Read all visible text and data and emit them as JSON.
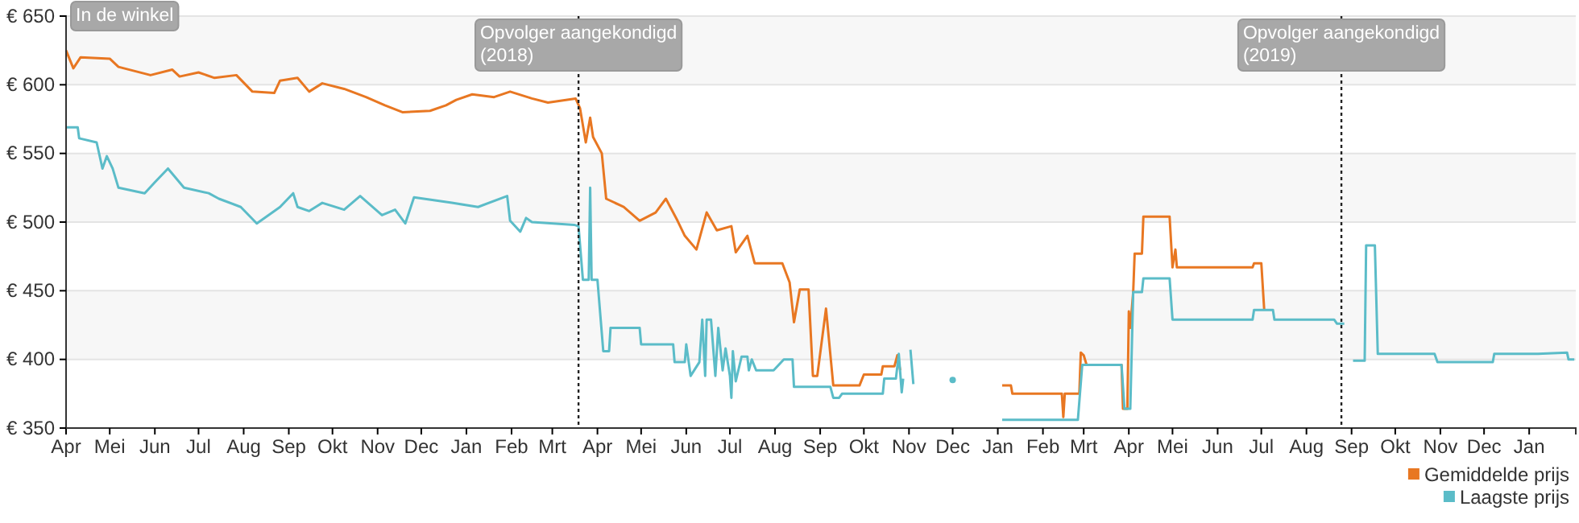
{
  "chart_data": {
    "type": "line",
    "xlim": [
      "2017-04-01",
      "2020-02-02"
    ],
    "xticks": [
      {
        "value": "2017-04-01",
        "label": "Apr"
      },
      {
        "value": "2017-05-01",
        "label": "Mei"
      },
      {
        "value": "2017-06-01",
        "label": "Jun"
      },
      {
        "value": "2017-07-01",
        "label": "Jul"
      },
      {
        "value": "2017-08-01",
        "label": "Aug"
      },
      {
        "value": "2017-09-01",
        "label": "Sep"
      },
      {
        "value": "2017-10-01",
        "label": "Okt"
      },
      {
        "value": "2017-11-01",
        "label": "Nov"
      },
      {
        "value": "2017-12-01",
        "label": "Dec"
      },
      {
        "value": "2018-01-01",
        "label": "Jan"
      },
      {
        "value": "2018-02-01",
        "label": "Feb"
      },
      {
        "value": "2018-03-01",
        "label": "Mrt"
      },
      {
        "value": "2018-04-01",
        "label": "Apr"
      },
      {
        "value": "2018-05-01",
        "label": "Mei"
      },
      {
        "value": "2018-06-01",
        "label": "Jun"
      },
      {
        "value": "2018-07-01",
        "label": "Jul"
      },
      {
        "value": "2018-08-01",
        "label": "Aug"
      },
      {
        "value": "2018-09-01",
        "label": "Sep"
      },
      {
        "value": "2018-10-01",
        "label": "Okt"
      },
      {
        "value": "2018-11-01",
        "label": "Nov"
      },
      {
        "value": "2018-12-01",
        "label": "Dec"
      },
      {
        "value": "2019-01-01",
        "label": "Jan"
      },
      {
        "value": "2019-02-01",
        "label": "Feb"
      },
      {
        "value": "2019-03-01",
        "label": "Mrt"
      },
      {
        "value": "2019-04-01",
        "label": "Apr"
      },
      {
        "value": "2019-05-01",
        "label": "Mei"
      },
      {
        "value": "2019-06-01",
        "label": "Jun"
      },
      {
        "value": "2019-07-01",
        "label": "Jul"
      },
      {
        "value": "2019-08-01",
        "label": "Aug"
      },
      {
        "value": "2019-09-01",
        "label": "Sep"
      },
      {
        "value": "2019-10-01",
        "label": "Okt"
      },
      {
        "value": "2019-11-01",
        "label": "Nov"
      },
      {
        "value": "2019-12-01",
        "label": "Dec"
      },
      {
        "value": "2020-01-01",
        "label": "Jan"
      }
    ],
    "ylim": [
      350,
      650
    ],
    "yticks": [
      {
        "value": 350,
        "label": "€ 350"
      },
      {
        "value": 400,
        "label": "€ 400"
      },
      {
        "value": 450,
        "label": "€ 450"
      },
      {
        "value": 500,
        "label": "€ 500"
      },
      {
        "value": 550,
        "label": "€ 550"
      },
      {
        "value": 600,
        "label": "€ 600"
      },
      {
        "value": 650,
        "label": "€ 650"
      }
    ],
    "grid": "y",
    "legend": "bottom right",
    "annotations": [
      "In de winkel"
    ],
    "ref_lines": [
      {
        "axis": "x",
        "value": "2018-03-19",
        "label": "Opvolger aangekondigd\n(2018)",
        "line_style": "dotted"
      },
      {
        "axis": "x",
        "value": "2019-08-25",
        "label": "Opvolger aangekondigd\n(2019)",
        "line_style": "dotted"
      }
    ],
    "series": [
      {
        "name": "Gemiddelde prijs",
        "color": "#e87722",
        "x": [
          "2017-04-01",
          "2017-04-06",
          "2017-04-11",
          "2017-05-01",
          "2017-05-07",
          "2017-05-29",
          "2017-06-13",
          "2017-06-18",
          "2017-07-01",
          "2017-07-12",
          "2017-07-27",
          "2017-08-07",
          "2017-08-22",
          "2017-08-26",
          "2017-09-07",
          "2017-09-15",
          "2017-09-24",
          "2017-10-09",
          "2017-10-24",
          "2017-11-06",
          "2017-11-18",
          "2017-12-07",
          "2017-12-18",
          "2017-12-25",
          "2018-01-05",
          "2018-01-20",
          "2018-01-31",
          "2018-02-15",
          "2018-02-26",
          "2018-03-17",
          "2018-03-20",
          "2018-03-24",
          "2018-03-27",
          "2018-03-29",
          "2018-04-04",
          "2018-04-07",
          "2018-04-19",
          "2018-04-30",
          "2018-05-11",
          "2018-05-18",
          "2018-05-26",
          "2018-05-31",
          "2018-06-08",
          "2018-06-15",
          "2018-06-22",
          "2018-07-02",
          "2018-07-05",
          "2018-07-13",
          "2018-07-18",
          "2018-08-06",
          "2018-08-11",
          "2018-08-14",
          "2018-08-18",
          "2018-08-24",
          "2018-08-27",
          "2018-08-30",
          "2018-09-05",
          "2018-09-10",
          "2018-09-28",
          "2018-10-01",
          "2018-10-13",
          "2018-10-14",
          "2018-10-22",
          "2018-10-24",
          "2018-10-26",
          "2018-11-15",
          "2019-01-04",
          "2019-01-10",
          "2019-01-11",
          "2019-02-14",
          "2019-02-15",
          "2019-02-16",
          "2019-02-26",
          "2019-02-27",
          "2019-03-01",
          "2019-03-03",
          "2019-03-27",
          "2019-03-28",
          "2019-03-31",
          "2019-04-01",
          "2019-04-02",
          "2019-04-04",
          "2019-04-05",
          "2019-04-10",
          "2019-04-11",
          "2019-04-29",
          "2019-05-01",
          "2019-05-03",
          "2019-05-04",
          "2019-06-25",
          "2019-06-26",
          "2019-07-01",
          "2019-07-03"
        ],
        "values": [
          625,
          612,
          620,
          619,
          613,
          607,
          611,
          606,
          609,
          605,
          607,
          595,
          594,
          603,
          605,
          595,
          601,
          597,
          591,
          585,
          580,
          581,
          585,
          589,
          593,
          591,
          595,
          590,
          587,
          590,
          583,
          558,
          576,
          562,
          550,
          517,
          511,
          501,
          507,
          517,
          501,
          490,
          480,
          507,
          494,
          497,
          478,
          490,
          470,
          470,
          456,
          427,
          451,
          451,
          388,
          388,
          437,
          381,
          381,
          389,
          389,
          395,
          395,
          403,
          392,
          null,
          381,
          381,
          375,
          375,
          358,
          375,
          375,
          405,
          403,
          396,
          396,
          364,
          364,
          435,
          423,
          449,
          477,
          477,
          504,
          504,
          467,
          480,
          467,
          467,
          470,
          470,
          436
        ]
      },
      {
        "name": "Laagste prijs",
        "color": "#5bbcc8",
        "x": [
          "2017-04-01",
          "2017-04-09",
          "2017-04-10",
          "2017-04-22",
          "2017-04-26",
          "2017-04-29",
          "2017-05-03",
          "2017-05-07",
          "2017-05-25",
          "2017-06-01",
          "2017-06-10",
          "2017-06-21",
          "2017-07-08",
          "2017-07-15",
          "2017-07-30",
          "2017-08-10",
          "2017-08-18",
          "2017-08-26",
          "2017-09-04",
          "2017-09-07",
          "2017-09-15",
          "2017-09-24",
          "2017-10-09",
          "2017-10-20",
          "2017-11-04",
          "2017-11-13",
          "2017-11-20",
          "2017-11-26",
          "2017-12-22",
          "2018-01-09",
          "2018-01-29",
          "2018-01-31",
          "2018-02-07",
          "2018-02-11",
          "2018-02-15",
          "2018-03-16",
          "2018-03-19",
          "2018-03-22",
          "2018-03-26",
          "2018-03-27",
          "2018-03-28",
          "2018-04-01",
          "2018-04-05",
          "2018-04-09",
          "2018-04-10",
          "2018-04-30",
          "2018-05-01",
          "2018-05-23",
          "2018-05-24",
          "2018-05-31",
          "2018-06-01",
          "2018-06-04",
          "2018-06-10",
          "2018-06-12",
          "2018-06-14",
          "2018-06-15",
          "2018-06-18",
          "2018-06-21",
          "2018-06-23",
          "2018-06-26",
          "2018-06-28",
          "2018-07-01",
          "2018-07-02",
          "2018-07-03",
          "2018-07-05",
          "2018-07-09",
          "2018-07-13",
          "2018-07-14",
          "2018-07-16",
          "2018-07-19",
          "2018-07-31",
          "2018-08-07",
          "2018-08-13",
          "2018-08-14",
          "2018-09-08",
          "2018-09-10",
          "2018-09-14",
          "2018-09-16",
          "2018-10-14",
          "2018-10-15",
          "2018-10-23",
          "2018-10-25",
          "2018-10-27",
          "2018-10-28",
          "2018-10-30",
          "2018-11-02",
          "2018-11-04",
          "2018-11-15",
          "2018-12-01",
          "2018-12-15",
          "2019-01-04",
          "2019-02-25",
          "2019-02-28",
          "2019-03-27",
          "2019-03-29",
          "2019-04-02",
          "2019-04-04",
          "2019-04-10",
          "2019-04-11",
          "2019-04-29",
          "2019-05-01",
          "2019-06-25",
          "2019-06-26",
          "2019-07-09",
          "2019-07-10",
          "2019-08-20",
          "2019-08-22",
          "2019-08-27",
          "2019-08-30",
          "2019-09-02",
          "2019-09-10",
          "2019-09-11",
          "2019-09-17",
          "2019-09-19",
          "2019-10-28",
          "2019-10-30",
          "2019-12-07",
          "2019-12-08",
          "2020-01-07",
          "2020-01-27",
          "2020-01-28",
          "2020-02-01"
        ],
        "values": [
          569,
          569,
          561,
          558,
          539,
          548,
          539,
          525,
          521,
          529,
          539,
          525,
          521,
          517,
          511,
          499,
          505,
          511,
          521,
          511,
          508,
          514,
          509,
          519,
          505,
          509,
          499,
          518,
          514,
          511,
          519,
          501,
          493,
          503,
          500,
          498,
          497,
          458,
          458,
          525,
          458,
          458,
          406,
          406,
          423,
          423,
          411,
          411,
          398,
          398,
          411,
          388,
          398,
          429,
          388,
          429,
          429,
          388,
          423,
          392,
          408,
          388,
          372,
          406,
          384,
          402,
          402,
          392,
          400,
          392,
          392,
          400,
          400,
          380,
          380,
          372,
          372,
          375,
          375,
          386,
          386,
          404,
          376,
          386,
          null,
          407,
          382,
          null,
          385,
          null,
          356,
          356,
          396,
          396,
          364,
          364,
          449,
          449,
          459,
          459,
          429,
          429,
          436,
          436,
          429,
          429,
          426,
          426,
          null,
          399,
          399,
          483,
          483,
          404,
          404,
          398,
          398,
          404,
          404,
          405,
          400,
          400
        ]
      }
    ]
  }
}
